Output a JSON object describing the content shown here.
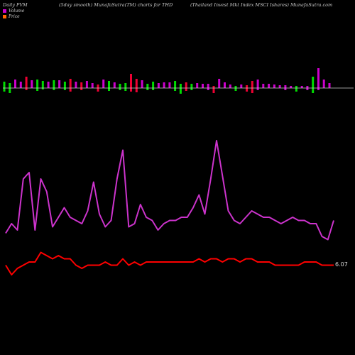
{
  "header": {
    "left": "Daily PVM",
    "middle": "(5day smooth) MunafaSutra(TM) charts for THD",
    "right": "(Thailand Invest Mkt Index MSCI Ishares) MunafaSutra.com"
  },
  "legend": {
    "volume_label": "Volume",
    "price_label": "Price",
    "volume_color": "#cc00cc",
    "price_color": "#ff6600"
  },
  "colors": {
    "background": "#000000",
    "up_bar": "#cc00cc",
    "down_bar_green": "#00dd00",
    "down_bar_red": "#ee0033",
    "volume_line": "#cc33cc",
    "price_line": "#ff0000",
    "baseline": "#cccccc"
  },
  "chart_data": {
    "type": "line",
    "series": [
      {
        "name": "Volume",
        "values": [
          63,
          66,
          64,
          80,
          82,
          64,
          80,
          76,
          65,
          68,
          71,
          68,
          67,
          66,
          70,
          79,
          69,
          65,
          67,
          80,
          89,
          65,
          66,
          72,
          68,
          67,
          64,
          66,
          67,
          67,
          68,
          68,
          71,
          75,
          69,
          80,
          92,
          81,
          70,
          67,
          66,
          68,
          70,
          69,
          68,
          68,
          67,
          66,
          67,
          68,
          67,
          67,
          66,
          66,
          62,
          61,
          67
        ]
      },
      {
        "name": "Price",
        "values": [
          53,
          50,
          52,
          53,
          54,
          54,
          57,
          56,
          55,
          56,
          55,
          55,
          53,
          52,
          53,
          53,
          53,
          54,
          53,
          53,
          55,
          53,
          54,
          53,
          54,
          54,
          54,
          54,
          54,
          54,
          54,
          54,
          54,
          55,
          54,
          55,
          55,
          54,
          55,
          55,
          54,
          55,
          55,
          54,
          54,
          54,
          53,
          53,
          53,
          53,
          53,
          54,
          54,
          54,
          53,
          53,
          53
        ]
      }
    ],
    "bars": [
      {
        "h": 9,
        "d": 5,
        "c": "g"
      },
      {
        "h": 7,
        "d": 7,
        "c": "g"
      },
      {
        "h": 12,
        "d": 0,
        "c": "m"
      },
      {
        "h": 9,
        "d": 0,
        "c": "m"
      },
      {
        "h": 16,
        "d": 3,
        "c": "r"
      },
      {
        "h": 11,
        "d": 0,
        "c": "m"
      },
      {
        "h": 12,
        "d": 4,
        "c": "g"
      },
      {
        "h": 10,
        "d": 2,
        "c": "g"
      },
      {
        "h": 9,
        "d": 0,
        "c": "m"
      },
      {
        "h": 11,
        "d": 3,
        "c": "g"
      },
      {
        "h": 11,
        "d": 0,
        "c": "m"
      },
      {
        "h": 9,
        "d": 3,
        "c": "g"
      },
      {
        "h": 13,
        "d": 5,
        "c": "r"
      },
      {
        "h": 9,
        "d": 0,
        "c": "m"
      },
      {
        "h": 8,
        "d": 3,
        "c": "r"
      },
      {
        "h": 10,
        "d": 0,
        "c": "m"
      },
      {
        "h": 7,
        "d": 0,
        "c": "m"
      },
      {
        "h": 5,
        "d": 5,
        "c": "r"
      },
      {
        "h": 12,
        "d": 0,
        "c": "m"
      },
      {
        "h": 10,
        "d": 4,
        "c": "g"
      },
      {
        "h": 8,
        "d": 0,
        "c": "m"
      },
      {
        "h": 6,
        "d": 3,
        "c": "g"
      },
      {
        "h": 7,
        "d": 4,
        "c": "g"
      },
      {
        "h": 20,
        "d": 5,
        "c": "r"
      },
      {
        "h": 13,
        "d": 6,
        "c": "r"
      },
      {
        "h": 11,
        "d": 0,
        "c": "m"
      },
      {
        "h": 6,
        "d": 3,
        "c": "g"
      },
      {
        "h": 9,
        "d": 3,
        "c": "g"
      },
      {
        "h": 7,
        "d": 0,
        "c": "m"
      },
      {
        "h": 8,
        "d": 0,
        "c": "m"
      },
      {
        "h": 8,
        "d": 0,
        "c": "m"
      },
      {
        "h": 10,
        "d": 4,
        "c": "g"
      },
      {
        "h": 6,
        "d": 8,
        "c": "g"
      },
      {
        "h": 8,
        "d": 4,
        "c": "r"
      },
      {
        "h": 6,
        "d": 3,
        "c": "g"
      },
      {
        "h": 7,
        "d": 0,
        "c": "m"
      },
      {
        "h": 6,
        "d": 0,
        "c": "m"
      },
      {
        "h": 6,
        "d": 3,
        "c": "m"
      },
      {
        "h": 3,
        "d": 7,
        "c": "r"
      },
      {
        "h": 13,
        "d": 0,
        "c": "m"
      },
      {
        "h": 8,
        "d": 0,
        "c": "m"
      },
      {
        "h": 5,
        "d": 0,
        "c": "m"
      },
      {
        "h": 3,
        "d": 4,
        "c": "g"
      },
      {
        "h": 5,
        "d": 0,
        "c": "m"
      },
      {
        "h": 4,
        "d": 5,
        "c": "r"
      },
      {
        "h": 10,
        "d": 7,
        "c": "r"
      },
      {
        "h": 12,
        "d": 3,
        "c": "m"
      },
      {
        "h": 6,
        "d": 0,
        "c": "m"
      },
      {
        "h": 6,
        "d": 0,
        "c": "m"
      },
      {
        "h": 5,
        "d": 0,
        "c": "m"
      },
      {
        "h": 4,
        "d": 0,
        "c": "m"
      },
      {
        "h": 4,
        "d": 3,
        "c": "m"
      },
      {
        "h": 3,
        "d": 0,
        "c": "m"
      },
      {
        "h": 3,
        "d": 5,
        "c": "g"
      },
      {
        "h": 3,
        "d": 0,
        "c": "m"
      },
      {
        "h": 3,
        "d": 3,
        "c": "m"
      },
      {
        "h": 16,
        "d": 7,
        "c": "g"
      },
      {
        "h": 28,
        "d": 3,
        "c": "m"
      },
      {
        "h": 12,
        "d": 0,
        "c": "m"
      },
      {
        "h": 7,
        "d": 0,
        "c": "m"
      }
    ],
    "last_price_label": "6.07"
  }
}
